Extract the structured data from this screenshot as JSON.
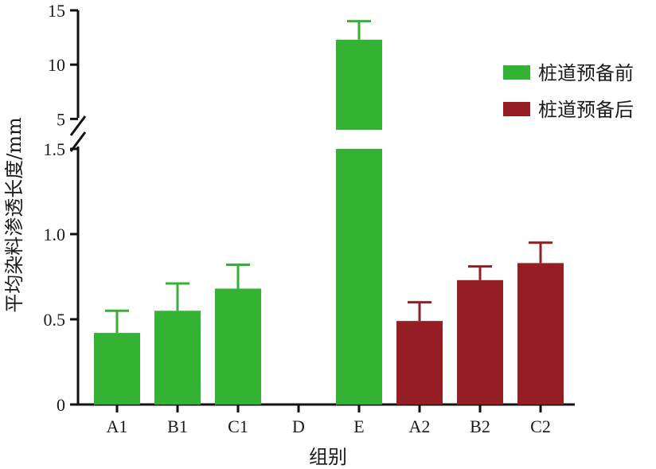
{
  "chart_data": {
    "type": "bar",
    "xlabel": "组别",
    "ylabel": "平均染料渗透长度/mm",
    "categories": [
      "A1",
      "B1",
      "C1",
      "D",
      "E",
      "A2",
      "B2",
      "C2"
    ],
    "series": [
      {
        "name": "桩道预备前",
        "color": "#33b234",
        "values": [
          0.42,
          0.55,
          0.68,
          0.0,
          12.3,
          null,
          null,
          null
        ],
        "errors": [
          0.13,
          0.16,
          0.14,
          0.0,
          1.7,
          null,
          null,
          null
        ]
      },
      {
        "name": "桩道预备后",
        "color": "#941e24",
        "values": [
          null,
          null,
          null,
          null,
          null,
          0.49,
          0.73,
          0.83
        ],
        "errors": [
          null,
          null,
          null,
          null,
          null,
          0.11,
          0.08,
          0.12
        ]
      }
    ],
    "y_axis": {
      "broken": true,
      "lower_segment": {
        "ylim": [
          0,
          1.5
        ],
        "ticks": [
          "0",
          "0.5",
          "1.0",
          "1.5"
        ]
      },
      "upper_segment": {
        "ylim": [
          4,
          15
        ],
        "ticks": [
          "5",
          "10",
          "15"
        ]
      }
    },
    "legend": "right",
    "grid": false
  }
}
